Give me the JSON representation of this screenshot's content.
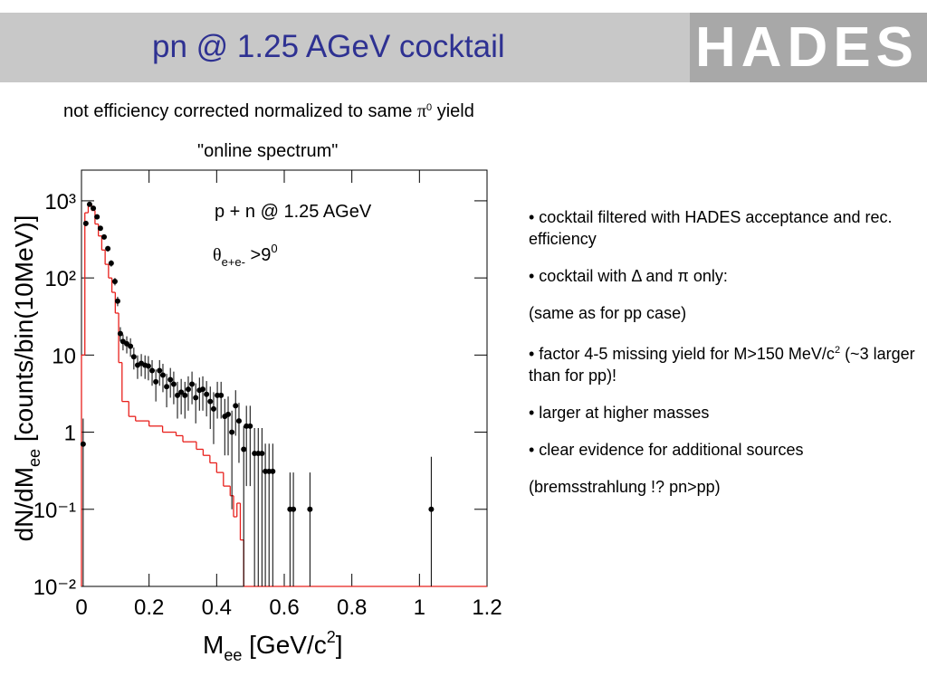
{
  "header": {
    "title": "pn @ 1.25 AGeV cocktail",
    "logo": "HADES"
  },
  "subtitle": [
    "not efficiency corrected normalized to same ",
    "π",
    "0",
    " yield"
  ],
  "chart_caption": "\"online spectrum\"",
  "bullets": [
    [
      "• cocktail filtered with HADES acceptance and rec. efficiency"
    ],
    [
      "• cocktail with Δ and π only:"
    ],
    [
      "(same as for pp case)"
    ],
    [
      "• factor 4-5 missing yield for M>150 MeV/c",
      "2",
      "  (~3 larger than for pp)!"
    ],
    [
      "• larger at higher masses"
    ],
    [
      "• clear evidence for additional sources"
    ],
    [
      "(bremsstrahlung !? pn>pp)"
    ]
  ],
  "chart_data": {
    "type": "scatter",
    "log_y": true,
    "xlabel": [
      "M",
      "ee",
      " [GeV/c",
      "2",
      "]"
    ],
    "ylabel": [
      "dN/dM",
      "ee",
      " [counts/bin(10MeV)]"
    ],
    "annotations": [
      [
        "p + n @ 1.25 AGeV"
      ],
      [
        "θ",
        "e+e-",
        " >9",
        "0"
      ]
    ],
    "xlim": [
      0,
      1.2
    ],
    "ylim": [
      0.01,
      2500
    ],
    "xticks": [
      0,
      0.2,
      0.4,
      0.6,
      0.8,
      1,
      1.2
    ],
    "yticks": [
      {
        "value": 0.01,
        "label": "10⁻²"
      },
      {
        "value": 0.1,
        "label": "10⁻¹"
      },
      1,
      10,
      {
        "value": 100,
        "label": "10²"
      },
      {
        "value": 1000,
        "label": "10³"
      }
    ],
    "series": [
      {
        "type": "scatter",
        "color": "#000000",
        "x": [
          0.005,
          0.013,
          0.024,
          0.035,
          0.046,
          0.056,
          0.067,
          0.078,
          0.088,
          0.099,
          0.107,
          0.115,
          0.123,
          0.134,
          0.145,
          0.155,
          0.166,
          0.177,
          0.188,
          0.198,
          0.209,
          0.22,
          0.231,
          0.241,
          0.252,
          0.263,
          0.273,
          0.284,
          0.295,
          0.306,
          0.316,
          0.327,
          0.338,
          0.349,
          0.359,
          0.37,
          0.381,
          0.391,
          0.402,
          0.413,
          0.424,
          0.434,
          0.445,
          0.456,
          0.466,
          0.48,
          0.488,
          0.499,
          0.512,
          0.523,
          0.534,
          0.544,
          0.555,
          0.566,
          0.617,
          0.627,
          0.676,
          1.035
        ],
        "values": [
          0.7,
          510,
          900,
          800,
          620,
          440,
          340,
          240,
          155,
          90,
          50,
          19,
          15,
          14,
          13,
          9.5,
          7.4,
          7.8,
          7.4,
          7.2,
          6.3,
          4.5,
          6.3,
          5.5,
          3.9,
          4.8,
          4.2,
          3.0,
          3.3,
          3.0,
          3.6,
          4.2,
          2.8,
          3.5,
          3.6,
          3.1,
          2.5,
          2.0,
          3.0,
          3.0,
          1.6,
          1.7,
          1.0,
          2.2,
          1.4,
          0.6,
          1.2,
          1.2,
          0.53,
          0.53,
          0.53,
          0.31,
          0.31,
          0.31,
          0.1,
          0.1,
          0.1,
          0.1
        ],
        "errors": [
          0.8,
          40,
          50,
          50,
          40,
          30,
          25,
          20,
          15,
          10,
          7,
          4,
          3.5,
          3.5,
          3.5,
          3,
          2.5,
          2.5,
          2.5,
          2.5,
          2.3,
          2,
          2.3,
          2.2,
          1.8,
          2,
          1.9,
          1.5,
          1.6,
          1.5,
          1.7,
          1.9,
          1.5,
          1.6,
          1.7,
          1.5,
          1.4,
          1.3,
          1.5,
          1.5,
          1.1,
          1.2,
          0.9,
          1.3,
          1.0,
          0.6,
          1.0,
          1.0,
          0.6,
          0.6,
          0.6,
          0.4,
          0.4,
          0.4,
          0.2,
          0.2,
          0.2,
          0.38
        ]
      },
      {
        "type": "histogram",
        "color": "#e8201c",
        "bins": [
          0,
          0.01,
          0.02,
          0.03,
          0.04,
          0.05,
          0.06,
          0.07,
          0.08,
          0.09,
          0.1,
          0.11,
          0.12,
          0.14,
          0.16,
          0.2,
          0.24,
          0.28,
          0.3,
          0.34,
          0.36,
          0.38,
          0.4,
          0.42,
          0.44,
          0.45,
          0.46,
          0.47,
          0.48,
          1.2
        ],
        "counts": [
          10,
          700,
          900,
          750,
          500,
          350,
          230,
          150,
          100,
          65,
          35,
          8,
          2.5,
          1.6,
          1.4,
          1.2,
          1.0,
          0.9,
          0.75,
          0.6,
          0.5,
          0.4,
          0.3,
          0.2,
          0.15,
          0.08,
          0.12,
          0.04,
          0.01
        ]
      }
    ]
  }
}
